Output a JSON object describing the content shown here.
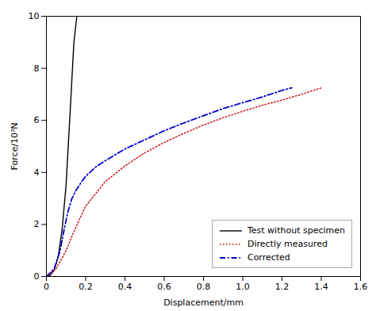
{
  "chart_data": {
    "type": "line",
    "xlabel": "Displacement/mm",
    "ylabel": "Force/10³N",
    "xlim": [
      0,
      1.6
    ],
    "ylim": [
      0,
      10
    ],
    "xticks": [
      0,
      0.2,
      0.4,
      0.6,
      0.8,
      {
        "value": 1.0,
        "label": "1.0"
      },
      1.2,
      1.4,
      1.6
    ],
    "yticks": [
      0,
      2,
      4,
      6,
      8,
      10
    ],
    "grid": false,
    "legend": "lower right",
    "series": [
      {
        "name": "Test without specimen",
        "color": "#000000",
        "line_style": "solid",
        "x": [
          0.0,
          0.01,
          0.02,
          0.04,
          0.06,
          0.08,
          0.1,
          0.12,
          0.14,
          0.155
        ],
        "values": [
          0.0,
          0.01,
          0.05,
          0.25,
          0.75,
          1.8,
          3.5,
          6.2,
          9.0,
          10.0
        ]
      },
      {
        "name": "Directly measured",
        "color": "#cc0000",
        "line_style": "dotted",
        "x": [
          0.0,
          0.05,
          0.1,
          0.15,
          0.2,
          0.3,
          0.4,
          0.5,
          0.6,
          0.7,
          0.8,
          0.9,
          1.0,
          1.1,
          1.2,
          1.3,
          1.4
        ],
        "values": [
          0.0,
          0.3,
          1.0,
          1.9,
          2.7,
          3.65,
          4.25,
          4.75,
          5.15,
          5.5,
          5.82,
          6.1,
          6.35,
          6.58,
          6.78,
          7.0,
          7.25
        ]
      },
      {
        "name": "Corrected",
        "color": "#0000cc",
        "line_style": "dashdot",
        "x": [
          0.0,
          0.04,
          0.07,
          0.09,
          0.11,
          0.13,
          0.15,
          0.18,
          0.2,
          0.25,
          0.3,
          0.4,
          0.5,
          0.6,
          0.7,
          0.8,
          0.9,
          1.0,
          1.1,
          1.2,
          1.25
        ],
        "values": [
          0.0,
          0.3,
          1.0,
          1.8,
          2.5,
          3.0,
          3.3,
          3.65,
          3.85,
          4.2,
          4.45,
          4.9,
          5.25,
          5.6,
          5.9,
          6.18,
          6.45,
          6.68,
          6.9,
          7.15,
          7.25
        ]
      }
    ]
  }
}
